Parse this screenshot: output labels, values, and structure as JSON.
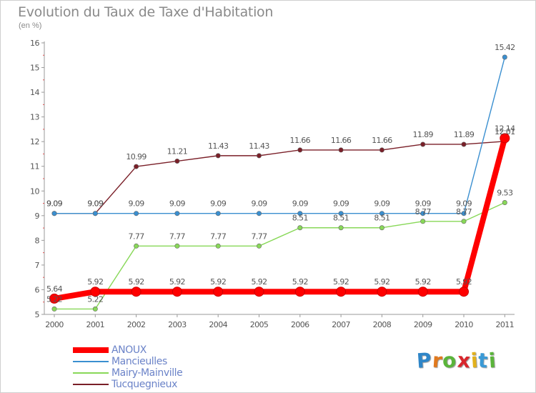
{
  "chart_data": {
    "type": "line",
    "title": "Evolution du Taux de Taxe d'Habitation",
    "subtitle": "(en %)",
    "xlabel": "",
    "ylabel": "",
    "x": [
      "2000",
      "2001",
      "2002",
      "2003",
      "2004",
      "2005",
      "2006",
      "2007",
      "2008",
      "2009",
      "2010",
      "2011"
    ],
    "ylim": [
      5,
      16
    ],
    "yticks": [
      "5",
      "6",
      "7",
      "8",
      "9",
      "10",
      "11",
      "12",
      "13",
      "14",
      "15",
      "16"
    ],
    "grid": false,
    "legend": "bottom-left",
    "series": [
      {
        "name": "ANOUX",
        "color": "#ff0000",
        "values": [
          5.64,
          5.92,
          5.92,
          5.92,
          5.92,
          5.92,
          5.92,
          5.92,
          5.92,
          5.92,
          5.92,
          12.14
        ],
        "labels": [
          "5.64",
          "5.92",
          "5.92",
          "5.92",
          "5.92",
          "5.92",
          "5.92",
          "5.92",
          "5.92",
          "5.92",
          "5.92",
          "12.14"
        ]
      },
      {
        "name": "Mancieulles",
        "color": "#3a8fd0",
        "values": [
          9.09,
          9.09,
          9.09,
          9.09,
          9.09,
          9.09,
          9.09,
          9.09,
          9.09,
          9.09,
          9.09,
          15.42
        ],
        "labels": [
          "9.09",
          "9.09",
          "9.09",
          "9.09",
          "9.09",
          "9.09",
          "9.09",
          "9.09",
          "9.09",
          "9.09",
          "9.09",
          "15.42"
        ]
      },
      {
        "name": "Mairy-Mainville",
        "color": "#88d858",
        "values": [
          5.22,
          5.22,
          7.77,
          7.77,
          7.77,
          7.77,
          8.51,
          8.51,
          8.51,
          8.77,
          8.77,
          9.53
        ],
        "labels": [
          "5.22",
          "5.22",
          "7.77",
          "7.77",
          "7.77",
          "7.77",
          "8.51",
          "8.51",
          "8.51",
          "8.77",
          "8.77",
          "9.53"
        ]
      },
      {
        "name": "Tucquegnieux",
        "color": "#7a1f28",
        "values": [
          9.09,
          9.09,
          10.99,
          11.21,
          11.43,
          11.43,
          11.66,
          11.66,
          11.66,
          11.89,
          11.89,
          12.01
        ],
        "labels": [
          "9.09",
          "9.09",
          "10.99",
          "11.21",
          "11.43",
          "11.43",
          "11.66",
          "11.66",
          "11.66",
          "11.89",
          "11.89",
          "12.01"
        ]
      }
    ]
  },
  "logo": {
    "letters": [
      "P",
      "r",
      "o",
      "x",
      "i",
      "t",
      "i"
    ],
    "colors": [
      "#2f86c8",
      "#e0791e",
      "#5ab43a",
      "#d8262c",
      "#e2b11c",
      "#3a9ad6",
      "#5ab43a"
    ]
  }
}
